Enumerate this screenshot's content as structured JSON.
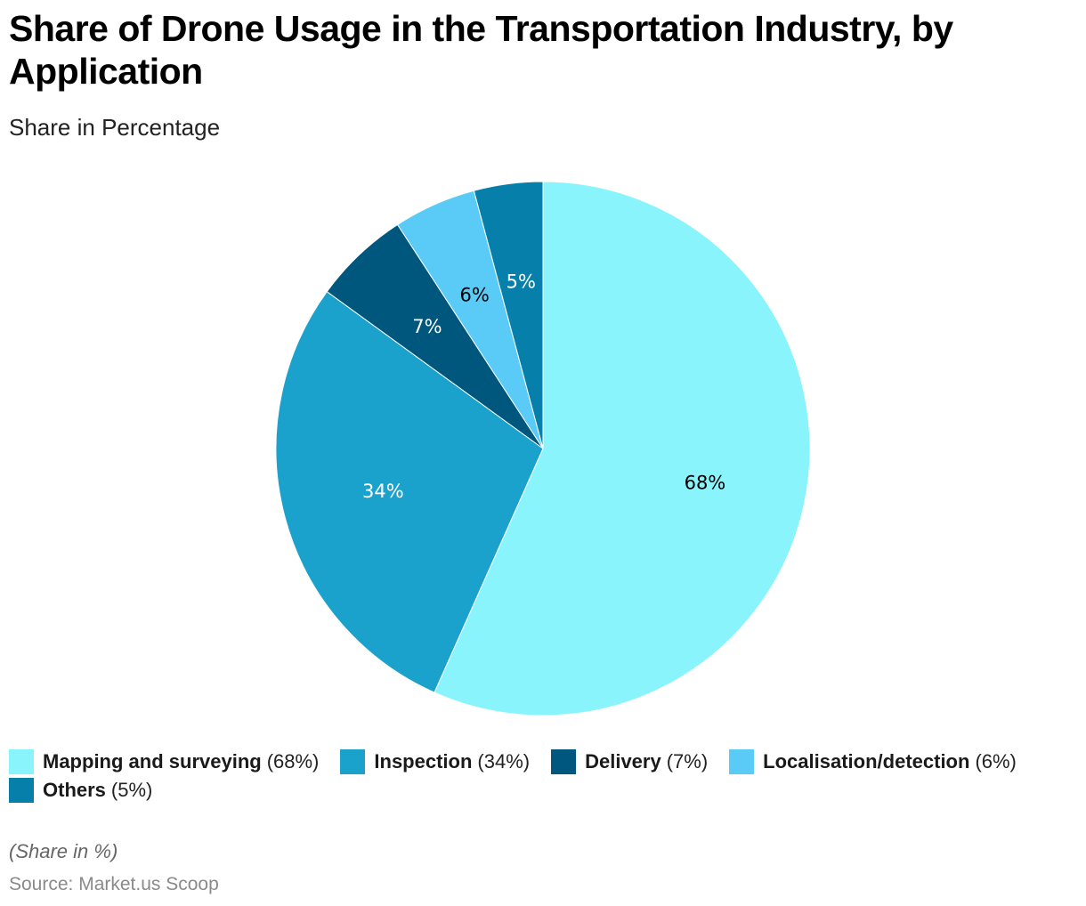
{
  "title": "Share of Drone Usage in the Transportation Industry, by Application",
  "subtitle": "Share in Percentage",
  "note": "(Share in %)",
  "source": "Source: Market.us Scoop",
  "chart_data": {
    "type": "pie",
    "title": "Share of Drone Usage in the Transportation Industry, by Application",
    "subtitle": "Share in Percentage",
    "unit": "%",
    "start_angle": "12 o'clock, clockwise",
    "legend_position": "bottom",
    "slices": [
      {
        "label": "Mapping and surveying",
        "value": 68,
        "value_label": "68%",
        "legend_value": "(68%)",
        "color": "#8AF4FD",
        "label_color": "#000000"
      },
      {
        "label": "Inspection",
        "value": 34,
        "value_label": "34%",
        "legend_value": "(34%)",
        "color": "#1AA2CD",
        "label_color": "#FFFFFF"
      },
      {
        "label": "Delivery",
        "value": 7,
        "value_label": "7%",
        "legend_value": "(7%)",
        "color": "#00577D",
        "label_color": "#FFFFFF"
      },
      {
        "label": "Localisation/detection",
        "value": 6,
        "value_label": "6%",
        "legend_value": "(6%)",
        "color": "#5ACBF7",
        "label_color": "#000000"
      },
      {
        "label": "Others",
        "value": 5,
        "value_label": "5%",
        "legend_value": "(5%)",
        "color": "#0680AA",
        "label_color": "#FFFFFF"
      }
    ]
  }
}
